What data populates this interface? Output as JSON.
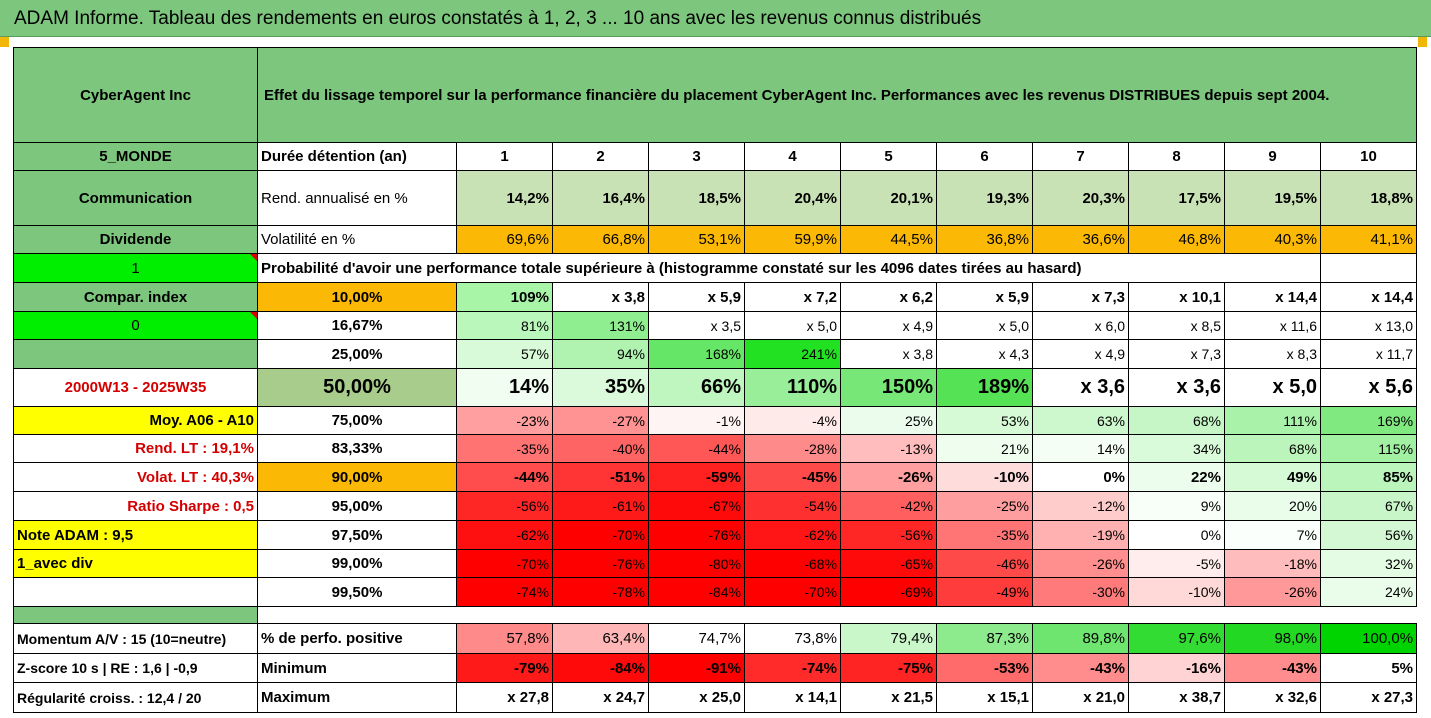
{
  "title": "ADAM Informe. Tableau des rendements en euros constatés à 1, 2, 3 ... 10 ans avec les revenus connus distribués",
  "header": {
    "name": "CyberAgent Inc",
    "description": "Effet du lissage temporel sur la performance financière du placement CyberAgent Inc. Performances avec les revenus DISTRIBUES depuis sept 2004."
  },
  "years_label": "Durée détention (an)",
  "years": [
    "1",
    "2",
    "3",
    "4",
    "5",
    "6",
    "7",
    "8",
    "9",
    "10"
  ],
  "left": {
    "region": "5_MONDE",
    "sector": "Communication",
    "dividend": "Dividende",
    "dividend_value": "1",
    "compar_index": "Compar. index",
    "compar_value": "0",
    "period": "2000W13 - 2025W35",
    "moy": "Moy. A06 - A10",
    "rend_lt": "Rend. LT :   19,1%",
    "volat_lt": "Volat. LT :   40,3%",
    "sharpe": "Ratio Sharpe :    0,5",
    "note": "Note ADAM : 9,5",
    "avec_div": "1_avec div",
    "momentum": "Momentum A/V : 15 (10=neutre)",
    "zscore": "Z-score 10 s  | RE : 1,6  | -0,9",
    "regularite": "Régularité croiss. : 12,4 / 20"
  },
  "rend": {
    "label": "Rend. annualisé en %",
    "values": [
      "14,2%",
      "16,4%",
      "18,5%",
      "20,4%",
      "20,1%",
      "19,3%",
      "20,3%",
      "17,5%",
      "19,5%",
      "18,8%"
    ]
  },
  "vol": {
    "label": "Volatilité en %",
    "values": [
      "69,6%",
      "66,8%",
      "53,1%",
      "59,9%",
      "44,5%",
      "36,8%",
      "36,6%",
      "46,8%",
      "40,3%",
      "41,1%"
    ]
  },
  "prob_label": "Probabilité d'avoir une performance totale supérieure à (histogramme constaté sur les 4096 dates tirées au hasard)",
  "rows": [
    {
      "pct": "10,00%",
      "values": [
        "109%",
        "x 3,8",
        "x 5,9",
        "x 7,2",
        "x 6,2",
        "x 5,9",
        "x 7,3",
        "x 10,1",
        "x 14,4",
        "x 14,4"
      ]
    },
    {
      "pct": "16,67%",
      "values": [
        "81%",
        "131%",
        "x 3,5",
        "x 5,0",
        "x 4,9",
        "x 5,0",
        "x 6,0",
        "x 8,5",
        "x 11,6",
        "x 13,0"
      ]
    },
    {
      "pct": "25,00%",
      "values": [
        "57%",
        "94%",
        "168%",
        "241%",
        "x 3,8",
        "x 4,3",
        "x 4,9",
        "x 7,3",
        "x 8,3",
        "x 11,7"
      ]
    },
    {
      "pct": "50,00%",
      "values": [
        "14%",
        "35%",
        "66%",
        "110%",
        "150%",
        "189%",
        "x 3,6",
        "x 3,6",
        "x 5,0",
        "x 5,6"
      ]
    },
    {
      "pct": "75,00%",
      "values": [
        "-23%",
        "-27%",
        "-1%",
        "-4%",
        "25%",
        "53%",
        "63%",
        "68%",
        "111%",
        "169%"
      ]
    },
    {
      "pct": "83,33%",
      "values": [
        "-35%",
        "-40%",
        "-44%",
        "-28%",
        "-13%",
        "21%",
        "14%",
        "34%",
        "68%",
        "115%"
      ]
    },
    {
      "pct": "90,00%",
      "values": [
        "-44%",
        "-51%",
        "-59%",
        "-45%",
        "-26%",
        "-10%",
        "0%",
        "22%",
        "49%",
        "85%"
      ]
    },
    {
      "pct": "95,00%",
      "values": [
        "-56%",
        "-61%",
        "-67%",
        "-54%",
        "-42%",
        "-25%",
        "-12%",
        "9%",
        "20%",
        "67%"
      ]
    },
    {
      "pct": "97,50%",
      "values": [
        "-62%",
        "-70%",
        "-76%",
        "-62%",
        "-56%",
        "-35%",
        "-19%",
        "0%",
        "7%",
        "56%"
      ]
    },
    {
      "pct": "99,00%",
      "values": [
        "-70%",
        "-76%",
        "-80%",
        "-68%",
        "-65%",
        "-46%",
        "-26%",
        "-5%",
        "-18%",
        "32%"
      ]
    },
    {
      "pct": "99,50%",
      "values": [
        "-74%",
        "-78%",
        "-84%",
        "-70%",
        "-69%",
        "-49%",
        "-30%",
        "-10%",
        "-26%",
        "24%"
      ]
    }
  ],
  "pos": {
    "label": "% de perfo. positive",
    "values": [
      "57,8%",
      "63,4%",
      "74,7%",
      "73,8%",
      "79,4%",
      "87,3%",
      "89,8%",
      "97,6%",
      "98,0%",
      "100,0%"
    ]
  },
  "min": {
    "label": "Minimum",
    "values": [
      "-79%",
      "-84%",
      "-91%",
      "-74%",
      "-75%",
      "-53%",
      "-43%",
      "-16%",
      "-43%",
      "5%"
    ]
  },
  "max": {
    "label": "Maximum",
    "values": [
      "x 27,8",
      "x 24,7",
      "x 25,0",
      "x 14,1",
      "x 21,5",
      "x 15,1",
      "x 21,0",
      "x 38,7",
      "x 32,6",
      "x 27,3"
    ]
  },
  "colors": {
    "header_green": "#7dc67d",
    "light_green": "#c9e2b5",
    "orange": "#fbb805",
    "yellow": "#ffff00",
    "bright_green": "#00ee00",
    "red_text": "#d40000"
  },
  "cell_colors": {
    "rows": [
      [
        "#a8f5a8",
        "#ffffff",
        "#ffffff",
        "#ffffff",
        "#ffffff",
        "#ffffff",
        "#ffffff",
        "#ffffff",
        "#ffffff",
        "#ffffff"
      ],
      [
        "#baf7ba",
        "#8fee8f",
        "#ffffff",
        "#ffffff",
        "#ffffff",
        "#ffffff",
        "#ffffff",
        "#ffffff",
        "#ffffff",
        "#ffffff"
      ],
      [
        "#d8fad8",
        "#b0f3b0",
        "#66e666",
        "#22e022",
        "#ffffff",
        "#ffffff",
        "#ffffff",
        "#ffffff",
        "#ffffff",
        "#ffffff"
      ],
      [
        "#f2fdf2",
        "#dbfadb",
        "#bff5bf",
        "#99ef99",
        "#77e877",
        "#55e255",
        "#ffffff",
        "#ffffff",
        "#ffffff",
        "#ffffff"
      ],
      [
        "#ff9f9f",
        "#ff9393",
        "#fff4f4",
        "#ffeaea",
        "#ecfcec",
        "#d6f9d6",
        "#cdf7cd",
        "#c6f6c6",
        "#a9f2a9",
        "#80ea80"
      ],
      [
        "#ff7373",
        "#ff6464",
        "#ff5656",
        "#ff8a8a",
        "#ffbdbd",
        "#eefdee",
        "#f5fef5",
        "#dafbda",
        "#bcf5bc",
        "#a2f1a2"
      ],
      [
        "#ff4d4d",
        "#ff3434",
        "#ff2020",
        "#ff4a4a",
        "#ff9f9f",
        "#ffdcdc",
        "#ffffff",
        "#edfded",
        "#d6f9d6",
        "#bbf5bb"
      ],
      [
        "#ff2626",
        "#ff1a1a",
        "#ff0a0a",
        "#ff3030",
        "#ff5f5f",
        "#ff9e9e",
        "#ffcccc",
        "#f8fef8",
        "#eafcea",
        "#c8f6c8"
      ],
      [
        "#ff1010",
        "#ff0000",
        "#ff0000",
        "#ff1515",
        "#ff2626",
        "#ff7474",
        "#ffb0b0",
        "#ffffff",
        "#fbfffb",
        "#d3f8d3"
      ],
      [
        "#ff0000",
        "#ff0000",
        "#ff0000",
        "#ff0000",
        "#ff0a0a",
        "#ff4a4a",
        "#ff8e8e",
        "#ffeded",
        "#ffbcbc",
        "#e4fbe4"
      ],
      [
        "#ff0000",
        "#ff0000",
        "#ff0000",
        "#ff0000",
        "#ff0000",
        "#ff3c3c",
        "#ff7b7b",
        "#ffd8d8",
        "#ff9898",
        "#eafcea"
      ]
    ],
    "pos": [
      "#ff8a8a",
      "#ffb6b6",
      "#ffffff",
      "#ffffff",
      "#c9f7c9",
      "#8deb8d",
      "#6ee56e",
      "#33dc33",
      "#22d822",
      "#00d400"
    ],
    "min": [
      "#ff1a1a",
      "#ff0a0a",
      "#ff0000",
      "#ff2a2a",
      "#ff2424",
      "#ff6b6b",
      "#ff8d8d",
      "#ffd3d3",
      "#ff8d8d",
      "#ffffff"
    ]
  }
}
